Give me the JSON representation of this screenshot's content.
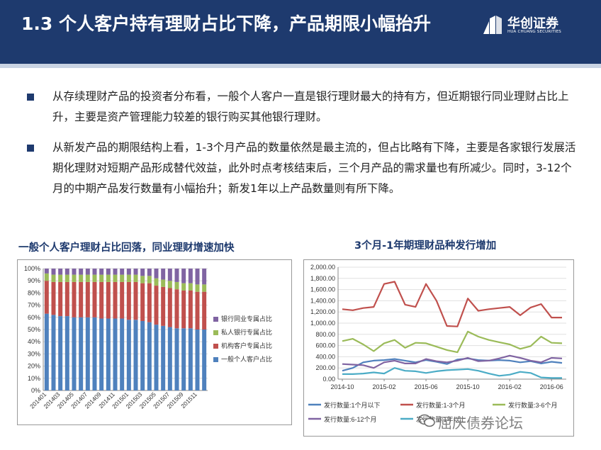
{
  "header": {
    "title": "1.3 个人客户持有理财占比下降，产品期限小幅抬升",
    "logo_cn": "华创证券",
    "logo_en": "HUA CHUANG SECURITIES",
    "bg_color": "#1e3a6e"
  },
  "bullets": [
    "从存续理财产品的投资者分布看，一般个人客户一直是银行理财最大的持有方，但近期银行同业理财占比上升，主要是资产管理能力较差的银行购买其他银行理财。",
    "从新发产品的期限结构上看，1-3个月产品的数量依然是最主流的，但占比略有下降，主要是各家银行发展活期化理财对短期产品形成替代效益，此外时点考核结束后，三个月产品的需求量也有所减少。同时，3-12个月的中期产品发行数量有小幅抬升；新发1年以上产品数量则有所下降。"
  ],
  "captions": {
    "left": "一般个人客户理财占比回落，同业理财增速加快",
    "right": "3个月-1年期理财品种发行增加"
  },
  "watermark": "屈庆债券论坛",
  "chart_data": [
    {
      "type": "bar",
      "stacked": true,
      "categories": [
        "201401",
        "201402",
        "201403",
        "201404",
        "201405",
        "201406",
        "201407",
        "201408",
        "201409",
        "201410",
        "201411",
        "201412",
        "201501",
        "201502",
        "201503",
        "201504",
        "201505",
        "201506",
        "201507",
        "201508",
        "201509",
        "201510",
        "201511",
        "201512"
      ],
      "x_tick_labels": [
        "201401",
        "201403",
        "201405",
        "201407",
        "201409",
        "201411",
        "201501",
        "201503",
        "201505",
        "201507",
        "201509",
        "201511"
      ],
      "y_ticks": [
        "0%",
        "10%",
        "20%",
        "30%",
        "40%",
        "50%",
        "60%",
        "70%",
        "80%",
        "90%",
        "100%"
      ],
      "ylim": [
        0,
        100
      ],
      "grid": true,
      "legend_position": "right",
      "series": [
        {
          "name": "一般个人客户占比",
          "color": "#4f81bd",
          "values": [
            63,
            62,
            61,
            61,
            60,
            60,
            60,
            60,
            59,
            59,
            59,
            59,
            58,
            58,
            57,
            56,
            54,
            53,
            52,
            51,
            51,
            51,
            50,
            50
          ]
        },
        {
          "name": "机构客户专属占比",
          "color": "#c0504d",
          "values": [
            27,
            27,
            28,
            28,
            29,
            29,
            29,
            29,
            30,
            30,
            30,
            30,
            31,
            31,
            31,
            32,
            32,
            32,
            32,
            32,
            31,
            31,
            31,
            31
          ]
        },
        {
          "name": "私人银行专属占比",
          "color": "#9bbb59",
          "values": [
            6,
            6,
            6,
            6,
            6,
            6,
            6,
            6,
            6,
            6,
            6,
            6,
            6,
            6,
            6,
            6,
            6,
            6,
            6,
            6,
            6,
            6,
            6,
            6
          ]
        },
        {
          "name": "银行同业专属占比",
          "color": "#8064a2",
          "values": [
            4,
            5,
            5,
            5,
            5,
            5,
            5,
            5,
            5,
            5,
            5,
            5,
            5,
            5,
            6,
            6,
            8,
            9,
            10,
            11,
            12,
            12,
            13,
            13
          ]
        }
      ]
    },
    {
      "type": "line",
      "x": [
        "2014-10",
        "2014-11",
        "2014-12",
        "2015-01",
        "2015-02",
        "2015-03",
        "2015-04",
        "2015-05",
        "2015-06",
        "2015-07",
        "2015-08",
        "2015-09",
        "2015-10",
        "2015-11",
        "2015-12",
        "2016-01",
        "2016-02",
        "2016-03",
        "2016-04",
        "2016-05",
        "2016-06",
        "2016-07"
      ],
      "x_tick_labels": [
        "2014-10",
        "2015-02",
        "2015-06",
        "2015-10",
        "2016-02",
        "2016-06"
      ],
      "y_ticks": [
        "0.00",
        "200.00",
        "400.00",
        "600.00",
        "800.00",
        "1,000.00",
        "1,200.00",
        "1,400.00",
        "1,600.00",
        "1,800.00",
        "2,000.00"
      ],
      "ylim": [
        0,
        2000
      ],
      "grid": true,
      "legend_position": "bottom",
      "series": [
        {
          "name": "发行数量:1个月以下",
          "color": "#4f81bd",
          "values": [
            150,
            200,
            300,
            330,
            340,
            360,
            330,
            300,
            340,
            310,
            270,
            350,
            370,
            340,
            330,
            340,
            330,
            300,
            320,
            280,
            310,
            290
          ]
        },
        {
          "name": "发行数量:1-3个月",
          "color": "#c0504d",
          "values": [
            1250,
            1230,
            1270,
            1290,
            1700,
            1740,
            1330,
            1290,
            1700,
            1400,
            950,
            940,
            1440,
            1220,
            1250,
            1270,
            1290,
            1140,
            1280,
            1340,
            1100,
            1100
          ]
        },
        {
          "name": "发行数量:3-6个月",
          "color": "#9bbb59",
          "values": [
            680,
            720,
            620,
            500,
            640,
            700,
            560,
            650,
            640,
            580,
            520,
            480,
            850,
            760,
            700,
            660,
            620,
            540,
            590,
            760,
            650,
            640
          ]
        },
        {
          "name": "发行数量:6-12个月",
          "color": "#8064a2",
          "values": [
            270,
            260,
            250,
            200,
            300,
            330,
            280,
            280,
            360,
            320,
            300,
            330,
            380,
            320,
            330,
            370,
            420,
            380,
            330,
            300,
            380,
            370
          ]
        },
        {
          "name": "发行数量:1年以上",
          "color": "#4bacc6",
          "values": [
            90,
            90,
            100,
            120,
            100,
            200,
            150,
            140,
            110,
            140,
            160,
            170,
            180,
            150,
            100,
            60,
            80,
            130,
            110,
            30,
            20,
            20
          ]
        }
      ]
    }
  ]
}
